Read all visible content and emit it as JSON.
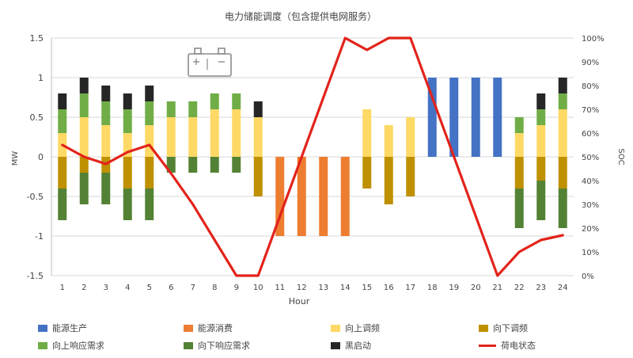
{
  "chart_data": {
    "type": "bar",
    "title": "电力储能调度（包含提供电网服务）",
    "xlabel": "Hour",
    "ylabel": "MW",
    "y2label": "SOC",
    "ylim": [
      -1.5,
      1.5
    ],
    "y2lim": [
      0,
      100
    ],
    "yticks": [
      "-1.5",
      "-1",
      "-0.5",
      "0",
      "0.5",
      "1",
      "1.5"
    ],
    "y2ticks": [
      "0%",
      "10%",
      "20%",
      "30%",
      "40%",
      "50%",
      "60%",
      "70%",
      "80%",
      "90%",
      "100%"
    ],
    "categories": [
      "1",
      "2",
      "3",
      "4",
      "5",
      "6",
      "7",
      "8",
      "9",
      "10",
      "11",
      "12",
      "13",
      "14",
      "15",
      "16",
      "17",
      "18",
      "19",
      "20",
      "21",
      "22",
      "23",
      "24"
    ],
    "series": [
      {
        "name": "能源生产",
        "color": "#4472c4",
        "values": [
          0,
          0,
          0,
          0,
          0,
          0,
          0,
          0,
          0,
          0,
          0,
          0,
          0,
          0,
          0,
          0,
          0,
          1,
          1,
          1,
          1,
          0,
          0,
          0
        ]
      },
      {
        "name": "能源消费",
        "color": "#ed7d31",
        "values": [
          0,
          0,
          0,
          0,
          0,
          0,
          0,
          0,
          0,
          0,
          -1,
          -1,
          -1,
          -1,
          0,
          0,
          0,
          0,
          0,
          0,
          0,
          0,
          0,
          0
        ]
      },
      {
        "name": "向上调频",
        "color": "#ffd966",
        "values": [
          0.3,
          0.5,
          0.4,
          0.3,
          0.4,
          0.5,
          0.5,
          0.6,
          0.6,
          0.5,
          0,
          0,
          0,
          0,
          0.6,
          0.4,
          0.5,
          0,
          0,
          0,
          0,
          0.3,
          0.4,
          0.6
        ]
      },
      {
        "name": "向下调频",
        "color": "#bf9000",
        "values": [
          -0.4,
          -0.2,
          -0.2,
          -0.4,
          -0.4,
          0,
          0,
          0,
          0,
          -0.5,
          0,
          0,
          0,
          0,
          -0.4,
          -0.6,
          -0.5,
          0,
          0,
          0,
          0,
          -0.4,
          -0.3,
          -0.4
        ]
      },
      {
        "name": "向上响应需求",
        "color": "#70ad47",
        "values": [
          0.3,
          0.3,
          0.3,
          0.3,
          0.3,
          0.2,
          0.2,
          0.2,
          0.2,
          0,
          0,
          0,
          0,
          0,
          0,
          0,
          0,
          0,
          0,
          0,
          0,
          0.2,
          0.2,
          0.2
        ]
      },
      {
        "name": "向下响应需求",
        "color": "#548235",
        "values": [
          -0.4,
          -0.4,
          -0.4,
          -0.4,
          -0.4,
          -0.2,
          -0.2,
          -0.2,
          -0.2,
          0,
          0,
          0,
          0,
          0,
          0,
          0,
          0,
          0,
          0,
          0,
          0,
          -0.5,
          -0.5,
          -0.5
        ]
      },
      {
        "name": "黑启动",
        "color": "#262626",
        "values": [
          0.2,
          0.2,
          0.2,
          0.2,
          0.2,
          0,
          0,
          0,
          0,
          0.2,
          0,
          0,
          0,
          0,
          0,
          0,
          0,
          0,
          0,
          0,
          0,
          0,
          0.2,
          0.2
        ]
      }
    ],
    "line": {
      "name": "荷电状态",
      "color": "#e2231a",
      "axis": "right",
      "values": [
        55,
        50,
        47,
        52,
        55,
        43,
        30,
        15,
        0,
        0,
        25,
        50,
        75,
        100,
        95,
        100,
        100,
        75,
        50,
        25,
        0,
        10,
        15,
        17
      ]
    },
    "grid": true,
    "legend_position": "bottom",
    "icon": "battery-icon"
  }
}
